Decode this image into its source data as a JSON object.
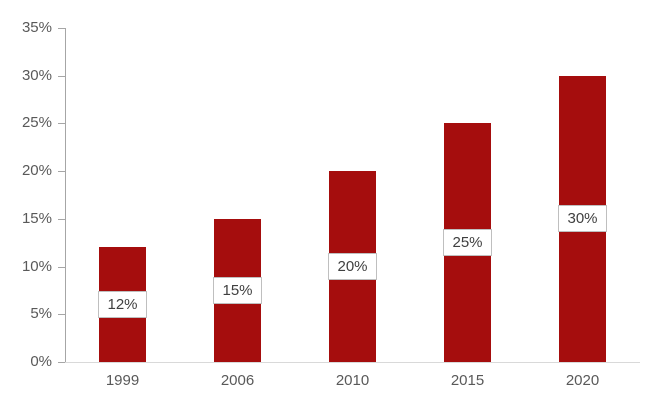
{
  "chart_data": {
    "type": "bar",
    "title": "",
    "categories": [
      "1999",
      "2006",
      "2010",
      "2015",
      "2020"
    ],
    "values": [
      12,
      15,
      20,
      25,
      30
    ],
    "data_labels": [
      "12%",
      "15%",
      "20%",
      "25%",
      "30%"
    ],
    "data_label_position": "center-of-bar",
    "yticks": [
      0,
      5,
      10,
      15,
      20,
      25,
      30,
      35
    ],
    "ytick_labels": [
      "0%",
      "5%",
      "10%",
      "15%",
      "20%",
      "25%",
      "30%",
      "35%"
    ],
    "ylim": [
      0,
      35
    ],
    "xlabel": "",
    "ylabel": "",
    "grid": false,
    "legend": false,
    "colors": {
      "bar_fill": "#a50d0d",
      "data_label_bg": "#ffffff",
      "data_label_border": "#bfbfbf",
      "data_label_text": "#404040",
      "axis_text": "#595959",
      "value_axis_line": "#a6a6a6",
      "category_axis_line": "#d9d9d9"
    }
  }
}
